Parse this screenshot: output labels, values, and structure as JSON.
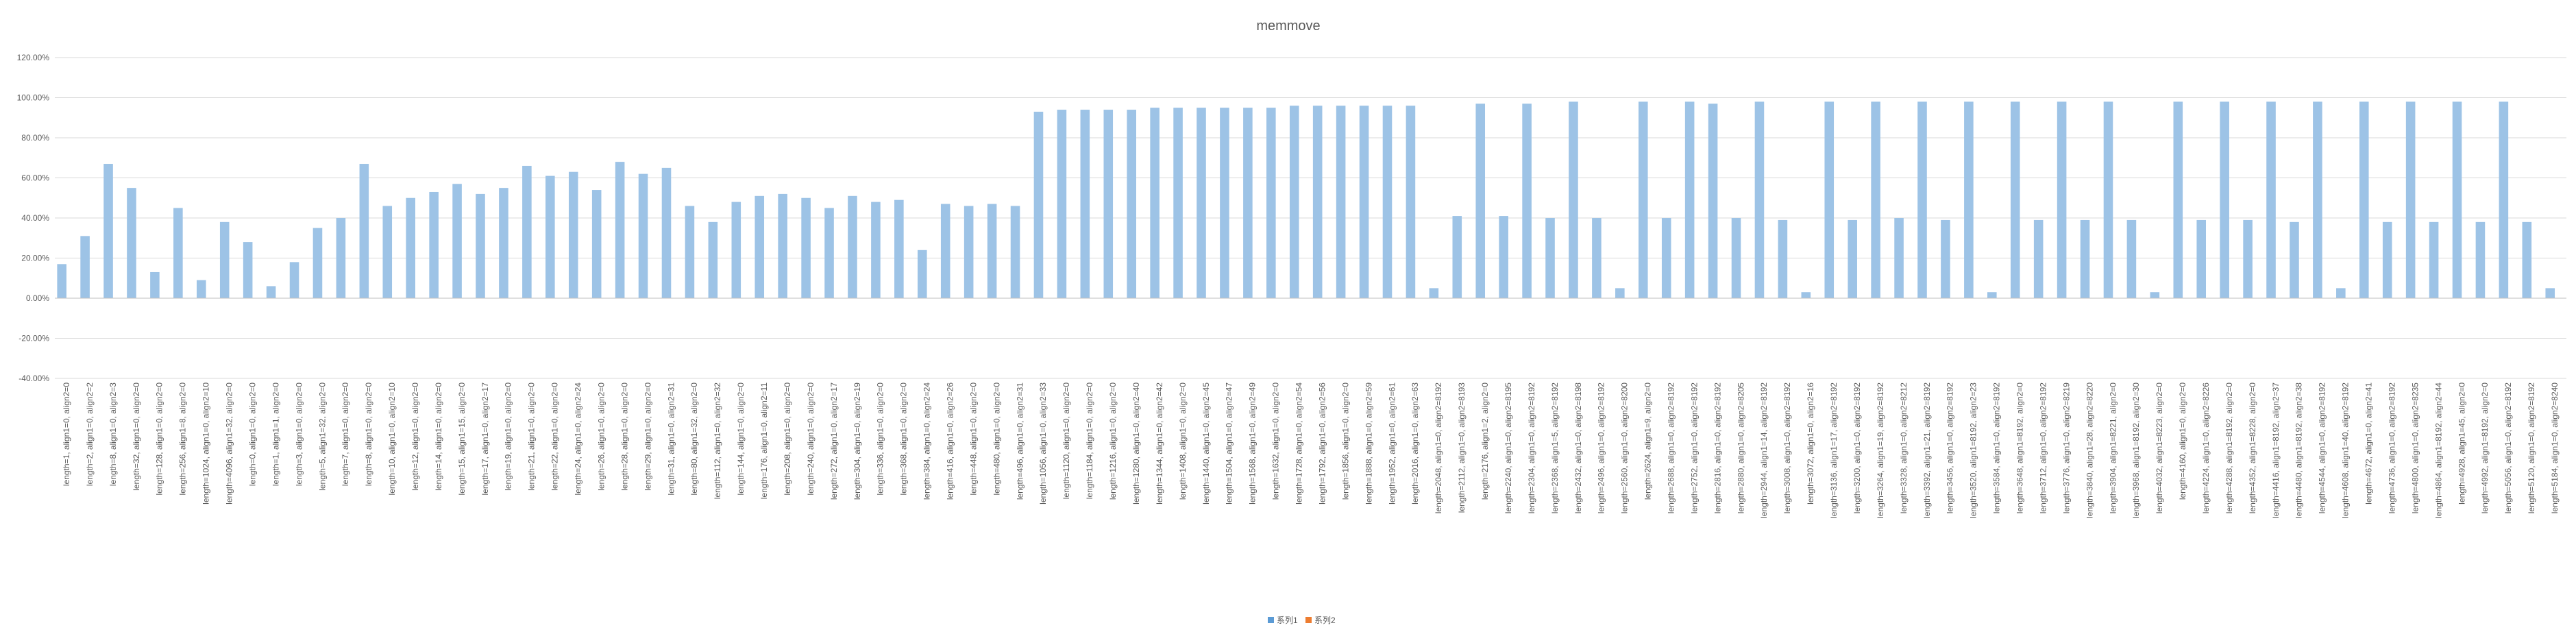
{
  "chart_data": {
    "type": "bar",
    "title": "memmove",
    "categories": [
      "length=1, align1=0, align2=0",
      "length=2, align1=0, align2=2",
      "length=8, align1=0, align2=3",
      "length=32, align1=0, align2=0",
      "length=128, align1=0, align2=0",
      "length=256, align1=8, align2=0",
      "length=1024, align1=0, align2=10",
      "length=4096, align1=32, align2=0",
      "length=0, align1=0, align2=0",
      "length=1, align1=1, align2=0",
      "length=3, align1=0, align2=0",
      "length=5, align1=32, align2=0",
      "length=7, align1=0, align2=0",
      "length=8, align1=0, align2=0",
      "length=10, align1=0, align2=10",
      "length=12, align1=0, align2=0",
      "length=14, align1=0, align2=0",
      "length=15, align1=15, align2=0",
      "length=17, align1=0, align2=17",
      "length=19, align1=0, align2=0",
      "length=21, align1=0, align2=0",
      "length=22, align1=0, align2=0",
      "length=24, align1=0, align2=24",
      "length=26, align1=0, align2=0",
      "length=28, align1=0, align2=0",
      "length=29, align1=0, align2=0",
      "length=31, align1=0, align2=31",
      "length=80, align1=32, align2=0",
      "length=112, align1=0, align2=32",
      "length=144, align1=0, align2=0",
      "length=176, align1=0, align2=11",
      "length=208, align1=0, align2=0",
      "length=240, align1=0, align2=0",
      "length=272, align1=0, align2=17",
      "length=304, align1=0, align2=19",
      "length=336, align1=0, align2=0",
      "length=368, align1=0, align2=0",
      "length=384, align1=0, align2=24",
      "length=416, align1=0, align2=26",
      "length=448, align1=0, align2=0",
      "length=480, align1=0, align2=0",
      "length=496, align1=0, align2=31",
      "length=1056, align1=0, align2=33",
      "length=1120, align1=0, align2=0",
      "length=1184, align1=0, align2=0",
      "length=1216, align1=0, align2=0",
      "length=1280, align1=0, align2=40",
      "length=1344, align1=0, align2=42",
      "length=1408, align1=0, align2=0",
      "length=1440, align1=0, align2=45",
      "length=1504, align1=0, align2=47",
      "length=1568, align1=0, align2=49",
      "length=1632, align1=0, align2=0",
      "length=1728, align1=0, align2=54",
      "length=1792, align1=0, align2=56",
      "length=1856, align1=0, align2=0",
      "length=1888, align1=0, align2=59",
      "length=1952, align1=0, align2=61",
      "length=2016, align1=0, align2=63",
      "length=2048, align1=0, align2=8192",
      "length=2112, align1=0, align2=8193",
      "length=2176, align1=2, align2=0",
      "length=2240, align1=0, align2=8195",
      "length=2304, align1=0, align2=8192",
      "length=2368, align1=5, align2=8192",
      "length=2432, align1=0, align2=8198",
      "length=2496, align1=0, align2=8192",
      "length=2560, align1=0, align2=8200",
      "length=2624, align1=9, align2=0",
      "length=2688, align1=0, align2=8192",
      "length=2752, align1=0, align2=8192",
      "length=2816, align1=0, align2=8192",
      "length=2880, align1=0, align2=8205",
      "length=2944, align1=14, align2=8192",
      "length=3008, align1=0, align2=8192",
      "length=3072, align1=0, align2=16",
      "length=3136, align1=17, align2=8192",
      "length=3200, align1=0, align2=8192",
      "length=3264, align1=19, align2=8192",
      "length=3328, align1=0, align2=8212",
      "length=3392, align1=21, align2=8192",
      "length=3456, align1=0, align2=8192",
      "length=3520, align1=8192, align2=23",
      "length=3584, align1=0, align2=8192",
      "length=3648, align1=8192, align2=0",
      "length=3712, align1=0, align2=8192",
      "length=3776, align1=0, align2=8219",
      "length=3840, align1=28, align2=8220",
      "length=3904, align1=8221, align2=0",
      "length=3968, align1=8192, align2=30",
      "length=4032, align1=8223, align2=0",
      "length=4160, align1=0, align2=0",
      "length=4224, align1=0, align2=8226",
      "length=4288, align1=8192, align2=0",
      "length=4352, align1=8228, align2=0",
      "length=4416, align1=8192, align2=37",
      "length=4480, align1=8192, align2=38",
      "length=4544, align1=0, align2=8192",
      "length=4608, align1=40, align2=8192",
      "length=4672, align1=0, align2=41",
      "length=4736, align1=0, align2=8192",
      "length=4800, align1=0, align2=8235",
      "length=4864, align1=8192, align2=44",
      "length=4928, align1=45, align2=0",
      "length=4992, align1=8192, align2=0",
      "length=5056, align1=0, align2=8192",
      "length=5120, align1=0, align2=8192",
      "length=5184, align1=0, align2=8240"
    ],
    "series": [
      {
        "name": "系列1",
        "color": "#9dc3e6",
        "values": [
          17,
          31,
          67,
          55,
          13,
          45,
          9,
          38,
          28,
          6,
          18,
          35,
          40,
          67,
          46,
          50,
          53,
          57,
          52,
          55,
          66,
          61,
          63,
          54,
          68,
          62,
          65,
          46,
          38,
          48,
          51,
          52,
          50,
          45,
          51,
          48,
          49,
          24,
          47,
          46,
          47,
          46,
          93,
          94,
          94,
          94,
          94,
          95,
          95,
          95,
          95,
          95,
          95,
          96,
          96,
          96,
          96,
          96,
          96,
          5,
          41,
          97,
          41,
          97,
          40,
          98,
          40,
          5,
          98,
          40,
          98,
          97,
          40,
          98,
          39,
          3,
          98,
          39,
          98,
          40,
          98,
          39,
          98,
          3,
          98,
          39,
          98,
          39,
          98,
          39,
          3,
          98,
          39,
          98,
          39,
          98,
          38,
          98,
          5,
          98,
          38,
          98,
          38,
          98,
          38,
          98,
          38,
          5
        ]
      },
      {
        "name": "系列2",
        "color": "#ed7d31",
        "values": [
          0,
          0,
          0,
          0,
          0,
          0,
          0,
          0,
          0,
          0,
          0,
          0,
          0,
          0,
          0,
          0,
          0,
          0,
          0,
          0,
          0,
          0,
          0,
          0,
          0,
          0,
          0,
          0,
          0,
          0,
          0,
          0,
          0,
          0,
          0,
          0,
          0,
          0,
          0,
          0,
          0,
          0,
          0,
          0,
          0,
          0,
          0,
          0,
          0,
          0,
          0,
          0,
          0,
          0,
          0,
          0,
          0,
          0,
          0,
          0,
          0,
          0,
          0,
          0,
          0,
          0,
          0,
          0,
          0,
          0,
          0,
          0,
          0,
          0,
          0,
          0,
          0,
          0,
          0,
          0,
          0,
          0,
          0,
          0,
          0,
          0,
          0,
          0,
          0,
          0,
          0,
          0,
          0,
          0,
          0,
          0,
          0,
          0,
          0,
          0,
          0,
          0,
          0,
          0,
          0,
          0,
          0,
          0
        ]
      }
    ],
    "ylim": [
      -40,
      120
    ],
    "yticks": [
      {
        "value": -40,
        "label": "-40.00%"
      },
      {
        "value": -20,
        "label": "-20.00%"
      },
      {
        "value": 0,
        "label": "0.00%"
      },
      {
        "value": 20,
        "label": "20.00%"
      },
      {
        "value": 40,
        "label": "40.00%"
      },
      {
        "value": 60,
        "label": "60.00%"
      },
      {
        "value": 80,
        "label": "80.00%"
      },
      {
        "value": 100,
        "label": "100.00%"
      },
      {
        "value": 120,
        "label": "120.00%"
      }
    ],
    "grid": true,
    "legend": "bottom"
  }
}
